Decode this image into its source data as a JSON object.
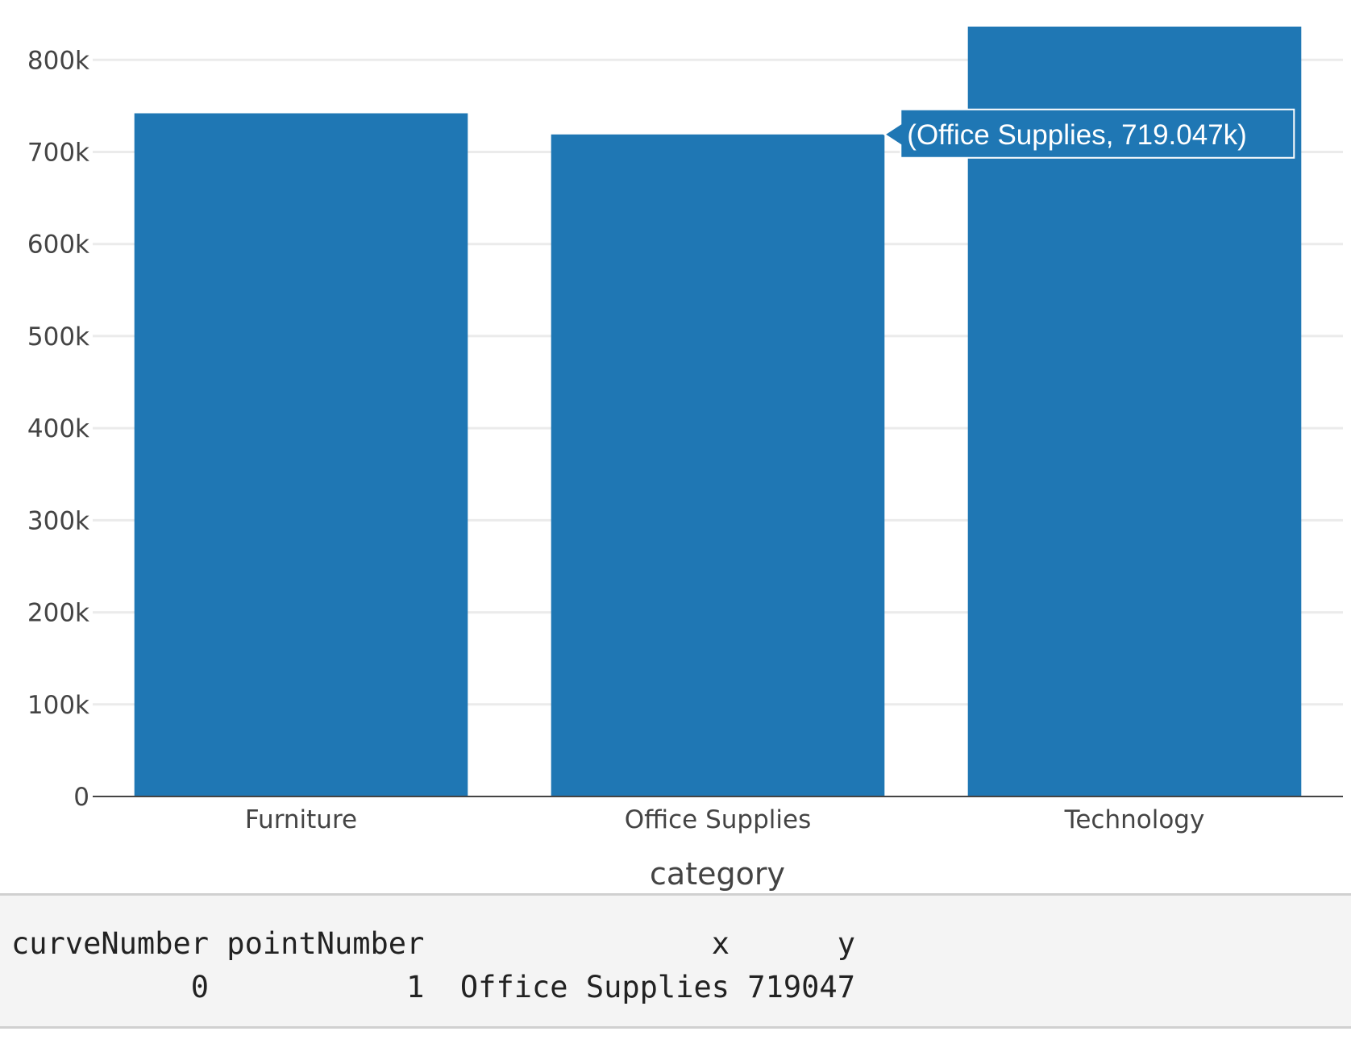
{
  "chart_data": {
    "type": "bar",
    "categories": [
      "Furniture",
      "Office Supplies",
      "Technology"
    ],
    "values": [
      741999,
      719047,
      836154
    ],
    "xlabel": "category",
    "ylabel": "",
    "ylim": [
      0,
      836154
    ],
    "yticks": [
      0,
      100000,
      200000,
      300000,
      400000,
      500000,
      600000,
      700000,
      800000
    ],
    "ytick_labels": [
      "0",
      "100k",
      "200k",
      "300k",
      "400k",
      "500k",
      "600k",
      "700k",
      "800k"
    ],
    "grid": "horizontal",
    "bar_color": "#1f77b4",
    "hover": {
      "category_index": 1,
      "label": "(Office Supplies, 719.047k)"
    }
  },
  "output": {
    "header": [
      "curveNumber",
      "pointNumber",
      "x",
      "y"
    ],
    "row": [
      "0",
      "1",
      "Office Supplies",
      "719047"
    ]
  }
}
